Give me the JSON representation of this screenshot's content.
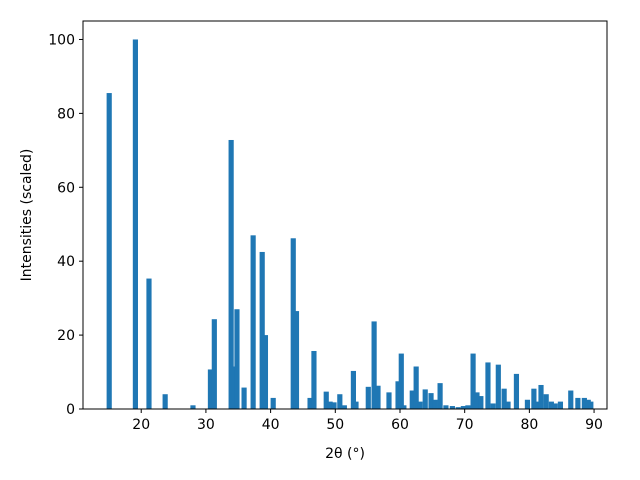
{
  "chart_data": {
    "type": "bar",
    "x_label": "2θ (°)",
    "y_label": "Intensities (scaled)",
    "color": "#1f77b4",
    "x": [
      15.05,
      19.1,
      21.2,
      23.7,
      28.0,
      30.7,
      31.3,
      33.9,
      34.4,
      34.8,
      35.9,
      37.3,
      38.7,
      39.2,
      40.4,
      43.5,
      44.0,
      46.1,
      46.7,
      48.6,
      49.2,
      49.8,
      50.7,
      51.4,
      52.8,
      53.2,
      55.1,
      56.0,
      56.6,
      58.3,
      59.7,
      60.2,
      60.6,
      61.9,
      62.5,
      63.1,
      63.9,
      64.8,
      65.4,
      66.2,
      67.1,
      68.1,
      69.0,
      69.8,
      70.5,
      71.3,
      71.9,
      72.5,
      73.6,
      74.4,
      75.2,
      76.1,
      76.7,
      78.0,
      79.7,
      80.7,
      81.4,
      81.8,
      82.6,
      83.4,
      84.0,
      84.8,
      86.4,
      87.5,
      88.5,
      89.1,
      89.5
    ],
    "values": [
      85.5,
      100,
      35.3,
      4,
      1,
      10.7,
      24.3,
      72.8,
      11.5,
      27,
      5.8,
      47,
      42.5,
      20,
      3,
      46.2,
      26.5,
      3,
      15.7,
      4.7,
      2,
      1.8,
      4,
      1,
      10.3,
      2,
      6,
      23.7,
      6.3,
      4.5,
      7.5,
      15,
      1,
      5,
      11.5,
      2,
      5.3,
      4.3,
      2.5,
      7,
      1,
      0.8,
      0.5,
      0.8,
      1,
      15,
      4.5,
      3.5,
      12.6,
      1.5,
      12,
      5.5,
      2,
      9.5,
      2.5,
      5.5,
      2,
      6.5,
      4,
      2,
      1.5,
      2,
      5,
      3,
      3,
      2.5,
      2
    ],
    "xlim": [
      11.0,
      92.0
    ],
    "ylim": [
      0,
      105
    ],
    "xticks": [
      20,
      30,
      40,
      50,
      60,
      70,
      80,
      90
    ],
    "yticks": [
      0,
      20,
      40,
      60,
      80,
      100
    ]
  }
}
